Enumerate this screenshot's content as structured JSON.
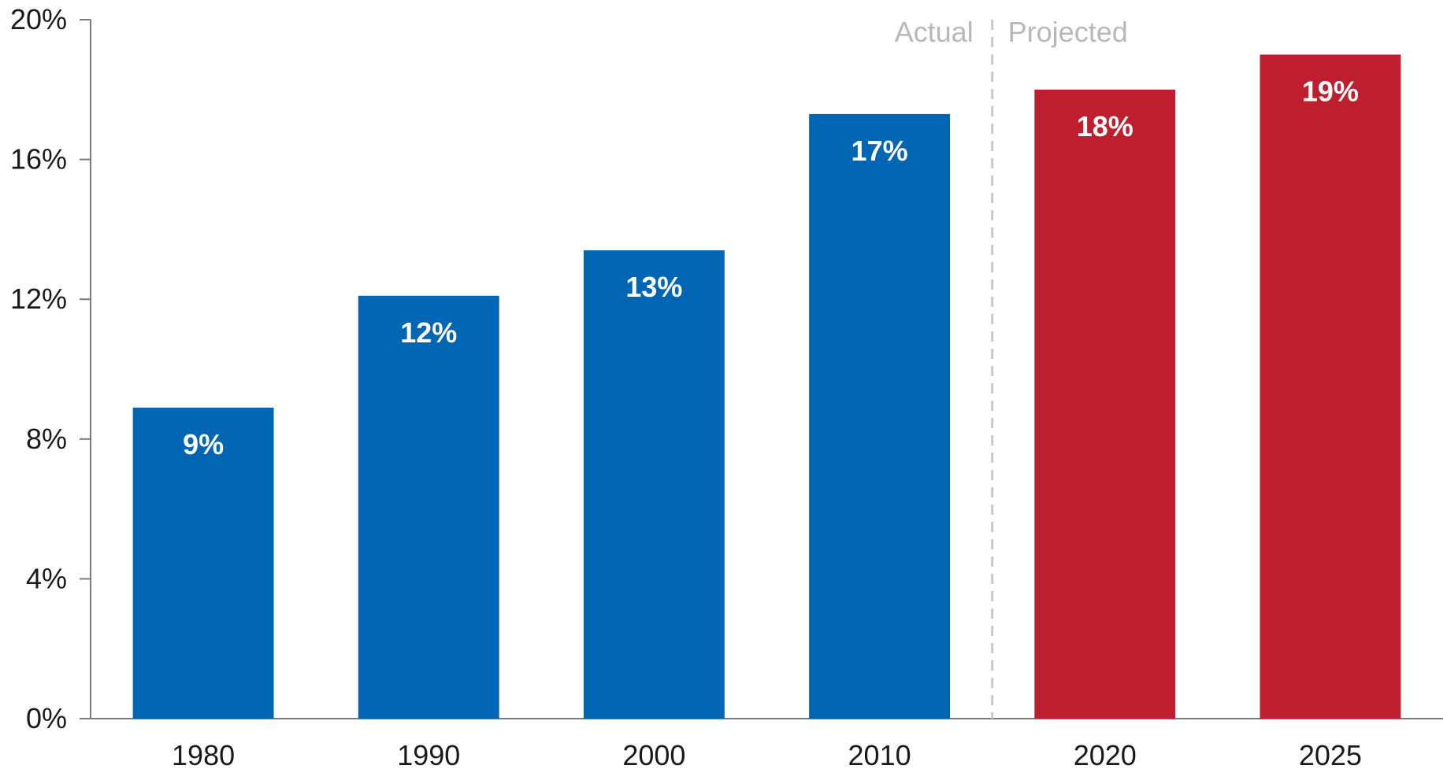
{
  "chart_data": {
    "type": "bar",
    "title": "",
    "xlabel": "",
    "ylabel": "",
    "ylim": [
      0,
      20
    ],
    "yticks": [
      0,
      4,
      8,
      12,
      16,
      20
    ],
    "ytick_labels": [
      "0%",
      "4%",
      "8%",
      "12%",
      "16%",
      "20%"
    ],
    "grid": false,
    "categories": [
      "1980",
      "1990",
      "2000",
      "2010",
      "2020",
      "2025"
    ],
    "values": [
      8.9,
      12.1,
      13.4,
      17.3,
      18.0,
      19.0
    ],
    "data_labels": [
      "9%",
      "12%",
      "13%",
      "17%",
      "18%",
      "19%"
    ],
    "bar_status": [
      "actual",
      "actual",
      "actual",
      "actual",
      "projected",
      "projected"
    ],
    "colors": {
      "actual": "#0066b3",
      "projected": "#be1e2d"
    },
    "annotations": {
      "actual": "Actual",
      "projected": "Projected"
    }
  }
}
